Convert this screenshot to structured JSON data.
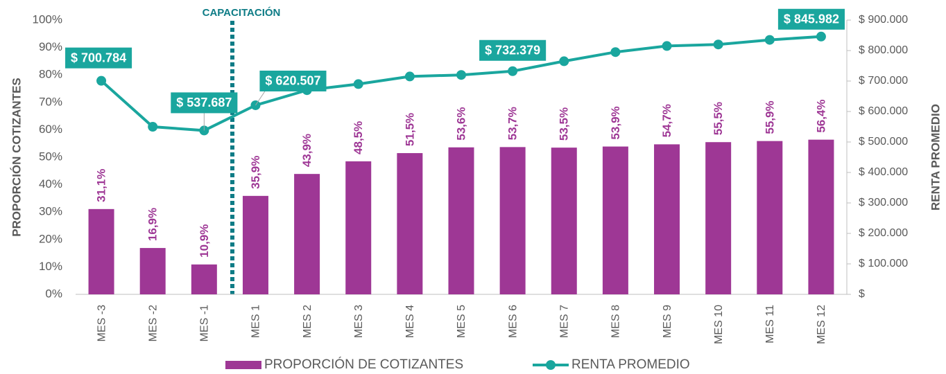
{
  "chart_data": {
    "type": "bar",
    "annotation": "CAPACITACIÓN",
    "ylabel": "PROPORCIÓN COTIZANTES",
    "y2label": "RENTA PROMEDIO",
    "categories": [
      "MES -3",
      "MES -2",
      "MES -1",
      "MES 1",
      "MES 2",
      "MES 3",
      "MES 4",
      "MES 5",
      "MES 6",
      "MES 7",
      "MES 8",
      "MES 9",
      "MES 10",
      "MES 11",
      "MES 12"
    ],
    "series": [
      {
        "name": "PROPORCIÓN DE COTIZANTES",
        "type": "bar",
        "color": "#9e3795",
        "values": [
          31.1,
          16.9,
          10.9,
          35.9,
          43.9,
          48.5,
          51.5,
          53.6,
          53.7,
          53.5,
          53.9,
          54.7,
          55.5,
          55.9,
          56.4
        ],
        "value_labels": [
          "31,1%",
          "16,9%",
          "10,9%",
          "35,9%",
          "43,9%",
          "48,5%",
          "51,5%",
          "53,6%",
          "53,7%",
          "53,5%",
          "53,9%",
          "54,7%",
          "55,5%",
          "55,9%",
          "56,4%"
        ]
      },
      {
        "name": "RENTA PROMEDIO",
        "type": "line",
        "axis": "y2",
        "color": "#1aa69e",
        "values": [
          700784,
          550000,
          537687,
          620507,
          670000,
          690000,
          715000,
          720000,
          732379,
          765000,
          795000,
          815000,
          820000,
          835000,
          845982
        ],
        "value_labels": [
          "$ 700.784",
          null,
          "$ 537.687",
          "$ 620.507",
          null,
          null,
          null,
          null,
          "$ 732.379",
          null,
          null,
          null,
          null,
          null,
          "$ 845.982"
        ]
      }
    ],
    "ylim": [
      0,
      100
    ],
    "yticks": [
      {
        "value": 0,
        "label": "0%"
      },
      {
        "value": 10,
        "label": "10%"
      },
      {
        "value": 20,
        "label": "20%"
      },
      {
        "value": 30,
        "label": "30%"
      },
      {
        "value": 40,
        "label": "40%"
      },
      {
        "value": 50,
        "label": "50%"
      },
      {
        "value": 60,
        "label": "60%"
      },
      {
        "value": 70,
        "label": "70%"
      },
      {
        "value": 80,
        "label": "80%"
      },
      {
        "value": 90,
        "label": "90%"
      },
      {
        "value": 100,
        "label": "100%"
      }
    ],
    "y2lim": [
      0,
      900000
    ],
    "y2ticks": [
      {
        "value": 0,
        "label": "$"
      },
      {
        "value": 100000,
        "label": "$ 100.000"
      },
      {
        "value": 200000,
        "label": "$ 200.000"
      },
      {
        "value": 300000,
        "label": "$ 300.000"
      },
      {
        "value": 400000,
        "label": "$ 400.000"
      },
      {
        "value": 500000,
        "label": "$ 500.000"
      },
      {
        "value": 600000,
        "label": "$ 600.000"
      },
      {
        "value": 700000,
        "label": "$ 700.000"
      },
      {
        "value": 800000,
        "label": "$ 800.000"
      },
      {
        "value": 900000,
        "label": "$ 900.000"
      }
    ],
    "legend": "bottom"
  }
}
